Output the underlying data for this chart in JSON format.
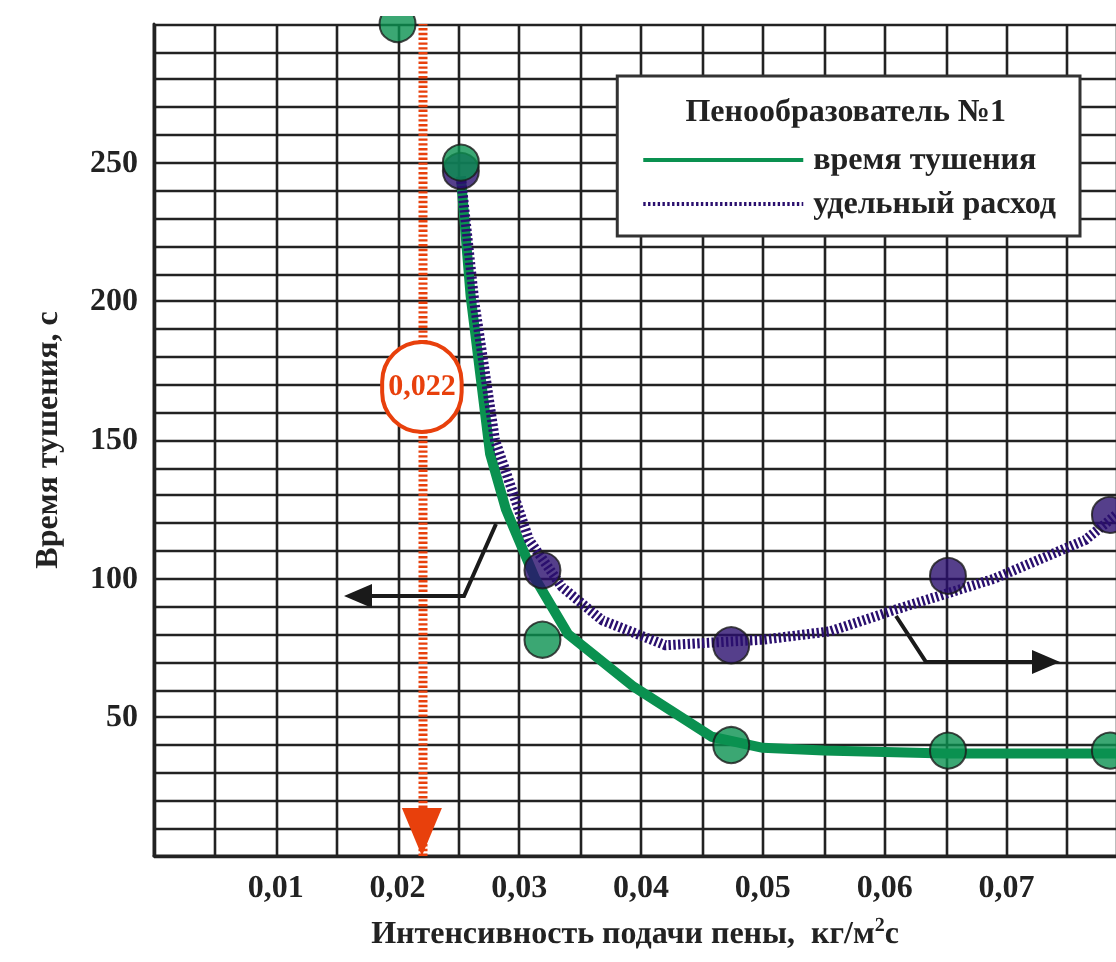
{
  "chart_data": {
    "type": "line",
    "legend_title": "Пенообразователь №1",
    "xlabel": "Интенсивность подачи пены,  кг/м$^{2}$с",
    "ylabel": "Время тушения, с",
    "xlim": [
      0,
      0.079
    ],
    "ylim": [
      0,
      300
    ],
    "xticks": [
      {
        "value": 0,
        "label": null
      },
      {
        "value": 0.005,
        "label": null
      },
      {
        "value": 0.01,
        "label": "0,01"
      },
      {
        "value": 0.015,
        "label": null
      },
      {
        "value": 0.02,
        "label": "0,02"
      },
      {
        "value": 0.025,
        "label": null
      },
      {
        "value": 0.03,
        "label": "0,03"
      },
      {
        "value": 0.035,
        "label": null
      },
      {
        "value": 0.04,
        "label": "0,04"
      },
      {
        "value": 0.045,
        "label": null
      },
      {
        "value": 0.05,
        "label": "0,05"
      },
      {
        "value": 0.055,
        "label": null
      },
      {
        "value": 0.06,
        "label": "0,06"
      },
      {
        "value": 0.065,
        "label": null
      },
      {
        "value": 0.07,
        "label": "0,07"
      },
      {
        "value": 0.075,
        "label": null
      }
    ],
    "yticks": [
      {
        "value": 0,
        "label": null
      },
      {
        "value": 10,
        "label": null
      },
      {
        "value": 20,
        "label": null
      },
      {
        "value": 30,
        "label": null
      },
      {
        "value": 40,
        "label": null
      },
      50,
      {
        "value": 60,
        "label": null
      },
      {
        "value": 70,
        "label": null
      },
      {
        "value": 80,
        "label": null
      },
      {
        "value": 90,
        "label": null
      },
      100,
      {
        "value": 110,
        "label": null
      },
      {
        "value": 120,
        "label": null
      },
      {
        "value": 130,
        "label": null
      },
      {
        "value": 140,
        "label": null
      },
      150,
      {
        "value": 160,
        "label": null
      },
      {
        "value": 170,
        "label": null
      },
      {
        "value": 180,
        "label": null
      },
      {
        "value": 190,
        "label": null
      },
      200,
      {
        "value": 210,
        "label": null
      },
      {
        "value": 220,
        "label": null
      },
      {
        "value": 230,
        "label": null
      },
      {
        "value": 240,
        "label": null
      },
      250,
      {
        "value": 260,
        "label": null
      },
      {
        "value": 270,
        "label": null
      },
      {
        "value": 280,
        "label": null
      },
      {
        "value": 290,
        "label": null
      },
      {
        "value": 300,
        "label": null
      }
    ],
    "grid": true,
    "legend": "top right",
    "ref_lines": [
      {
        "axis": "x",
        "value": 0.022,
        "label": "0,022",
        "color": "#e8400c",
        "line_style": "dotted"
      }
    ],
    "series": [
      {
        "name": "время тушения",
        "color": "#0a9150",
        "line_style": "solid",
        "marker": "none",
        "x": [
          0.0252,
          0.026,
          0.0276,
          0.0289,
          0.0313,
          0.034,
          0.0394,
          0.0458,
          0.05,
          0.055,
          0.065,
          0.079
        ],
        "values": [
          245,
          202,
          145,
          125,
          100,
          80,
          61,
          43,
          39,
          38,
          37,
          37
        ]
      },
      {
        "name": "удельный расход",
        "color": "#2a0f6e",
        "line_style": "dotted",
        "marker": "none",
        "x": [
          0.0252,
          0.0263,
          0.028,
          0.0308,
          0.0335,
          0.0368,
          0.042,
          0.05,
          0.0555,
          0.061,
          0.069,
          0.0765,
          0.079
        ],
        "values": [
          245,
          200,
          150,
          114,
          97,
          85,
          76,
          78,
          81,
          89,
          100,
          114,
          123
        ]
      },
      {
        "type": "scatter",
        "color": "#0a9150",
        "marker": "circle",
        "x": [
          0.02,
          0.0252,
          0.0319,
          0.0474,
          0.0652,
          0.0785
        ],
        "values": [
          300,
          250,
          78,
          40,
          38,
          38
        ]
      },
      {
        "type": "scatter",
        "color": "#2a0f6e",
        "marker": "circle",
        "x": [
          0.0252,
          0.0319,
          0.0474,
          0.0652,
          0.0785
        ],
        "values": [
          247,
          103,
          76,
          101,
          123
        ]
      }
    ]
  }
}
